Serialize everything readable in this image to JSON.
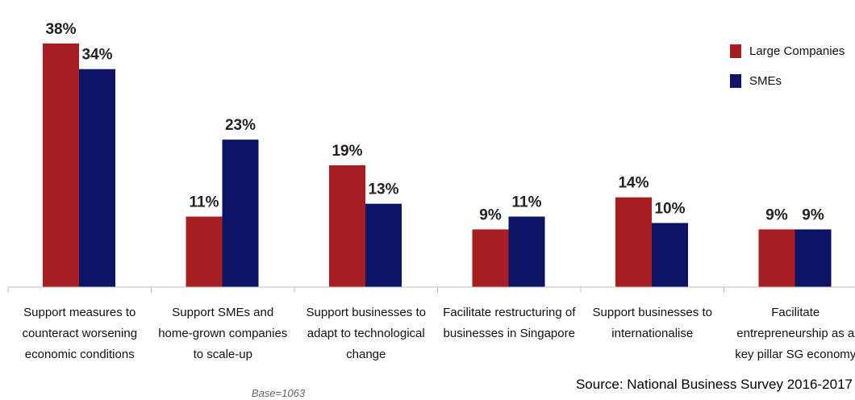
{
  "chart_data": {
    "type": "bar",
    "categories": [
      [
        "Support measures to",
        "counteract worsening",
        "economic conditions"
      ],
      [
        "Support SMEs and",
        "home-grown companies",
        "to scale-up"
      ],
      [
        "Support businesses to",
        "adapt to technological",
        "change"
      ],
      [
        "Facilitate restructuring of",
        "businesses in Singapore"
      ],
      [
        "Support businesses to",
        "internationalise"
      ],
      [
        "Facilitate",
        "entrepreneurship as a",
        "key pillar SG economy"
      ]
    ],
    "series": [
      {
        "name": "Large Companies",
        "values": [
          38,
          11,
          19,
          9,
          14,
          9
        ],
        "color": "#a71e22"
      },
      {
        "name": "SMEs",
        "values": [
          34,
          23,
          13,
          11,
          10,
          9
        ],
        "color": "#0d1466"
      }
    ],
    "value_suffix": "%",
    "ylim": [
      0,
      40
    ],
    "grid": false,
    "legend_position": "top-right",
    "base_note": "Base=1063",
    "source": "Source: National Business Survey 2016-2017"
  }
}
